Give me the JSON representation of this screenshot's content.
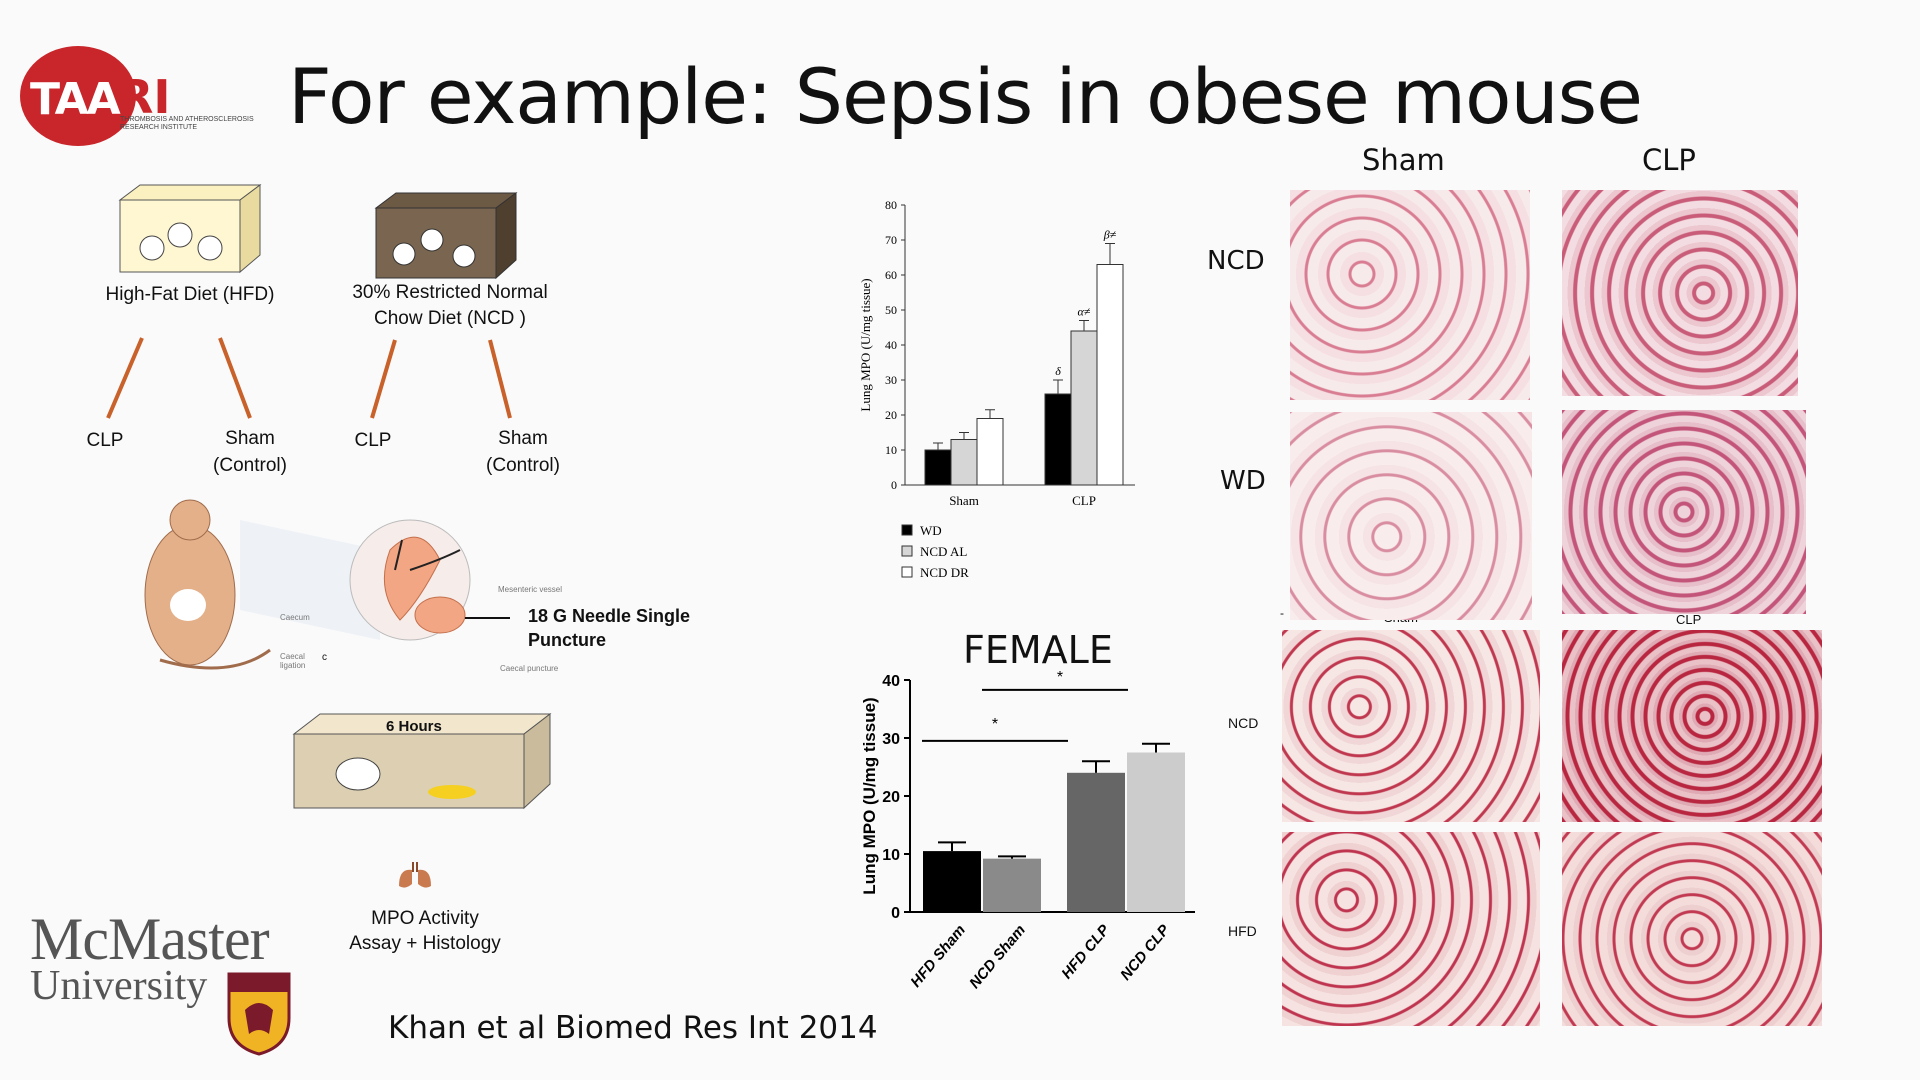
{
  "slide": {
    "title": "For example: Sepsis in obese mouse",
    "citation": "Khan et al Biomed Res Int 2014"
  },
  "logo": {
    "taa": "TAA",
    "ri": "RI",
    "subtitle": "THROMBOSIS AND ATHEROSCLEROSIS RESEARCH INSTITUTE"
  },
  "university": {
    "line1": "McMaster",
    "line2": "University"
  },
  "diagram": {
    "hfd_label": "High-Fat Diet (HFD)",
    "ncd_label_line1": "30% Restricted Normal",
    "ncd_label_line2": "Chow Diet (NCD )",
    "branches": [
      {
        "clp": "CLP",
        "sham1": "Sham",
        "sham2": "(Control)"
      },
      {
        "clp": "CLP",
        "sham1": "Sham",
        "sham2": "(Control)"
      }
    ],
    "needle_line1": "18 G Needle Single",
    "needle_line2": "Puncture",
    "small_labels": [
      "Mesenteric vessel",
      "Caecum",
      "Caecal ligation",
      "Caecal puncture"
    ],
    "c_mark": "c",
    "hours_label": "6 Hours",
    "assay_line1": "MPO Activity",
    "assay_line2": "Assay + Histology"
  },
  "chart_data": [
    {
      "type": "bar",
      "categories": [
        "Sham",
        "CLP"
      ],
      "series": [
        {
          "name": "WD",
          "values": [
            10,
            26
          ],
          "errors": [
            2,
            4
          ],
          "color": "#000000"
        },
        {
          "name": "NCD AL",
          "values": [
            13,
            44
          ],
          "errors": [
            2,
            3
          ],
          "color": "#d6d6d6"
        },
        {
          "name": "NCD DR",
          "values": [
            19,
            63
          ],
          "errors": [
            2.5,
            6
          ],
          "color": "#ffffff"
        }
      ],
      "annotations": [
        "δ",
        "α≠",
        "β≠"
      ],
      "ylabel": "Lung MPO (U/mg tissue)",
      "ylim": [
        0,
        80
      ],
      "yticks": [
        0,
        10,
        20,
        30,
        40,
        50,
        60,
        70,
        80
      ],
      "legend_position": "bottom-left"
    },
    {
      "type": "bar",
      "title": "FEMALE",
      "categories": [
        "HFD Sham",
        "NCD Sham",
        "HFD CLP",
        "NCD CLP"
      ],
      "values": [
        10.5,
        9.2,
        24,
        27.5
      ],
      "errors": [
        1.5,
        0.4,
        2,
        1.5
      ],
      "colors": [
        "#000000",
        "#8a8a8a",
        "#666666",
        "#cccccc"
      ],
      "ylabel": "Lung MPO (U/mg tissue)",
      "ylim": [
        0,
        40
      ],
      "yticks": [
        0,
        10,
        20,
        30,
        40
      ],
      "significance": [
        "*",
        "*"
      ]
    }
  ],
  "histology": {
    "top_cols": [
      "Sham",
      "CLP"
    ],
    "top_rows": [
      "NCD",
      "WD"
    ],
    "bottom_cols": [
      "Sham",
      "CLP"
    ],
    "bottom_rows": [
      "NCD",
      "HFD"
    ],
    "small_marks": [
      "-"
    ]
  }
}
